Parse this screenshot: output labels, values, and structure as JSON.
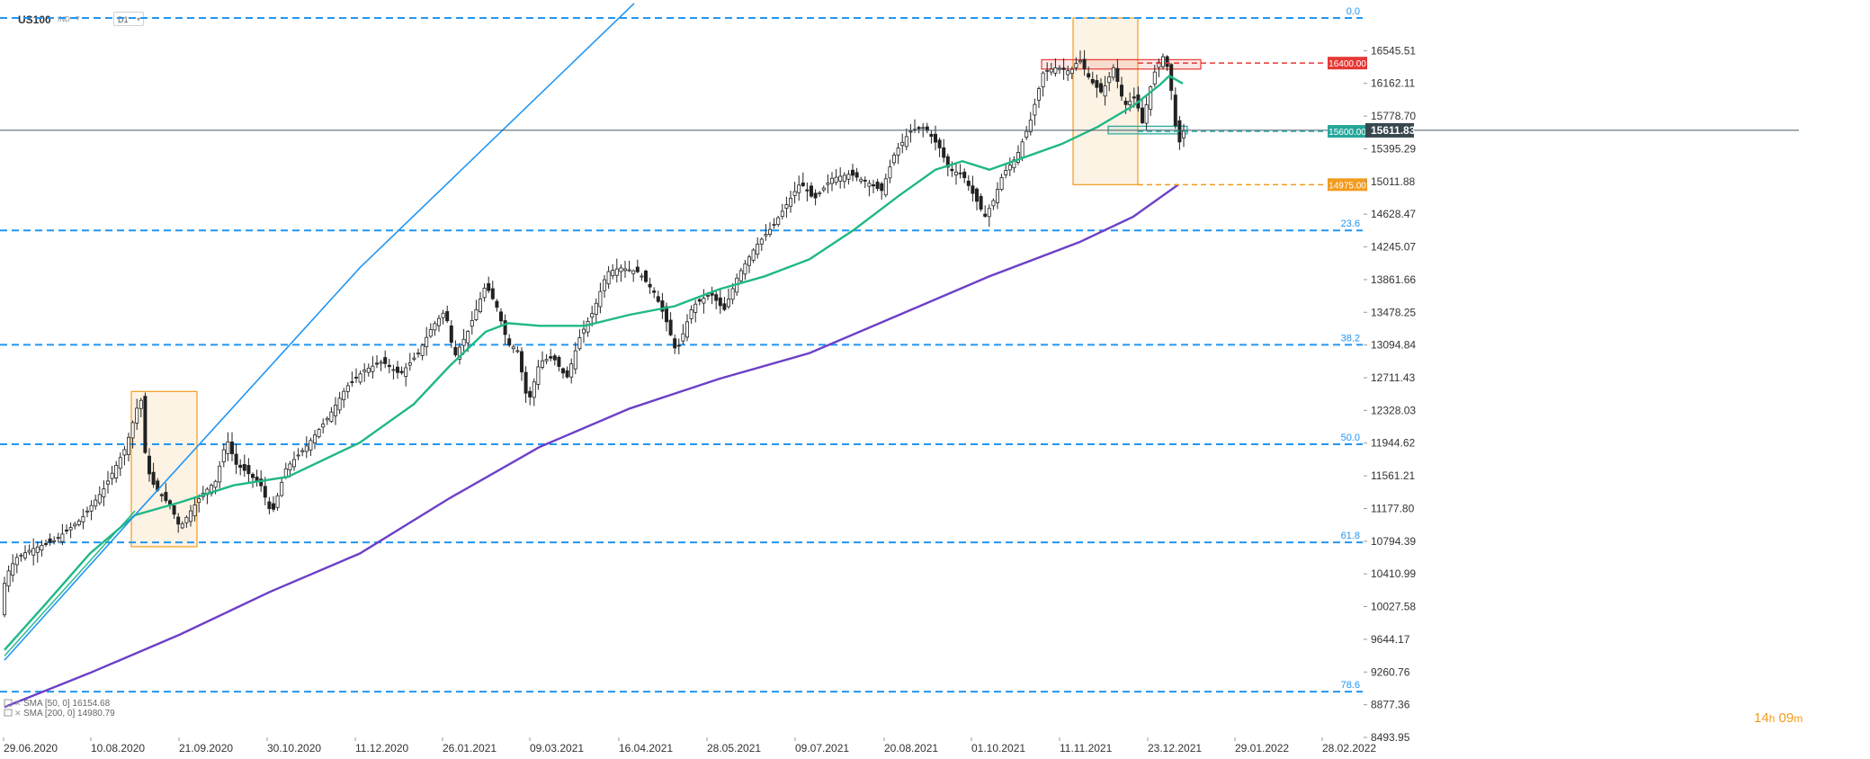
{
  "toolbar": {
    "symbol": "US100",
    "symbol_type": "IND",
    "timeframe": "D1"
  },
  "countdown": {
    "hours": "14",
    "h": "h",
    "minutes": "09",
    "m": "m"
  },
  "chart_data": {
    "type": "candlestick",
    "x_axis": {
      "labels": [
        "29.06.2020",
        "10.08.2020",
        "21.09.2020",
        "30.10.2020",
        "11.12.2020",
        "26.01.2021",
        "09.03.2021",
        "16.04.2021",
        "28.05.2021",
        "09.07.2021",
        "20.08.2021",
        "01.10.2021",
        "11.11.2021",
        "23.12.2021",
        "29.01.2022",
        "28.02.2022"
      ]
    },
    "y_axis": {
      "range": [
        8493.95,
        16928.93
      ],
      "ticks": [
        16545.51,
        16162.11,
        15778.7,
        15395.29,
        15011.88,
        14628.47,
        14245.07,
        13861.66,
        13478.25,
        13094.84,
        12711.43,
        12328.03,
        11944.62,
        11561.21,
        11177.8,
        10794.39,
        10410.99,
        10027.58,
        9644.17,
        9260.76,
        8877.36,
        8493.95
      ]
    },
    "current_price": "15611.83",
    "levels": [
      {
        "label": "16400.00",
        "value": 16400.0,
        "color": "#e53935",
        "style": "dashed"
      },
      {
        "label": "15600.00",
        "value": 15600.0,
        "color": "#26a69a",
        "style": "dashed"
      },
      {
        "label": "14975.00",
        "value": 14975.0,
        "color": "#f29b1e",
        "style": "dashed"
      }
    ],
    "fibonacci": [
      {
        "label": "0.0",
        "value": 16928.93
      },
      {
        "label": "23.6",
        "value": 14438.3
      },
      {
        "label": "38.2",
        "value": 13097.4
      },
      {
        "label": "50.0",
        "value": 11930.7
      },
      {
        "label": "61.8",
        "value": 10781.0
      },
      {
        "label": "78.6",
        "value": 9030.0
      }
    ],
    "indicators": [
      {
        "name": "SMA",
        "params": "[50, 0]",
        "value": "16154.68",
        "color": "#1fb886"
      },
      {
        "name": "SMA",
        "params": "[200, 0]",
        "value": "14980.79",
        "color": "#6c3fc8"
      }
    ],
    "series": [
      {
        "name": "price",
        "type": "candlestick",
        "anchors": [
          [
            0,
            9900
          ],
          [
            6,
            10380
          ],
          [
            18,
            10600
          ],
          [
            35,
            10700
          ],
          [
            60,
            10800
          ],
          [
            90,
            11050
          ],
          [
            115,
            11400
          ],
          [
            140,
            11900
          ],
          [
            152,
            12350
          ],
          [
            157,
            12450
          ],
          [
            162,
            11750
          ],
          [
            168,
            11500
          ],
          [
            178,
            11350
          ],
          [
            190,
            11200
          ],
          [
            200,
            10950
          ],
          [
            212,
            11150
          ],
          [
            225,
            11350
          ],
          [
            240,
            11500
          ],
          [
            252,
            12000
          ],
          [
            262,
            11700
          ],
          [
            275,
            11600
          ],
          [
            290,
            11450
          ],
          [
            302,
            11100
          ],
          [
            318,
            11650
          ],
          [
            340,
            11900
          ],
          [
            365,
            12250
          ],
          [
            385,
            12600
          ],
          [
            405,
            12800
          ],
          [
            425,
            12900
          ],
          [
            445,
            12750
          ],
          [
            465,
            13000
          ],
          [
            480,
            13300
          ],
          [
            495,
            13500
          ],
          [
            505,
            12950
          ],
          [
            520,
            13250
          ],
          [
            540,
            13800
          ],
          [
            552,
            13550
          ],
          [
            565,
            13100
          ],
          [
            575,
            13050
          ],
          [
            587,
            12400
          ],
          [
            600,
            12900
          ],
          [
            615,
            12950
          ],
          [
            630,
            12700
          ],
          [
            645,
            13200
          ],
          [
            660,
            13500
          ],
          [
            675,
            13950
          ],
          [
            690,
            14000
          ],
          [
            710,
            13950
          ],
          [
            728,
            13700
          ],
          [
            740,
            13400
          ],
          [
            752,
            13000
          ],
          [
            770,
            13550
          ],
          [
            790,
            13700
          ],
          [
            805,
            13500
          ],
          [
            820,
            13900
          ],
          [
            840,
            14250
          ],
          [
            860,
            14500
          ],
          [
            875,
            14750
          ],
          [
            890,
            15000
          ],
          [
            905,
            14800
          ],
          [
            925,
            15050
          ],
          [
            945,
            15100
          ],
          [
            965,
            15000
          ],
          [
            980,
            14900
          ],
          [
            995,
            15350
          ],
          [
            1012,
            15600
          ],
          [
            1028,
            15650
          ],
          [
            1045,
            15400
          ],
          [
            1055,
            15150
          ],
          [
            1070,
            15100
          ],
          [
            1085,
            14800
          ],
          [
            1095,
            14600
          ],
          [
            1105,
            14800
          ],
          [
            1115,
            15100
          ],
          [
            1130,
            15300
          ],
          [
            1145,
            15700
          ],
          [
            1160,
            16300
          ],
          [
            1175,
            16350
          ],
          [
            1190,
            16300
          ],
          [
            1200,
            16450
          ],
          [
            1212,
            16200
          ],
          [
            1225,
            16050
          ],
          [
            1238,
            16350
          ],
          [
            1250,
            15900
          ],
          [
            1262,
            16000
          ],
          [
            1270,
            15700
          ],
          [
            1282,
            16250
          ],
          [
            1292,
            16500
          ],
          [
            1300,
            16300
          ],
          [
            1306,
            15700
          ],
          [
            1312,
            15450
          ],
          [
            1316,
            15611.83
          ]
        ]
      },
      {
        "name": "SMA 50",
        "type": "line",
        "color": "#1fb886",
        "anchors": [
          [
            5,
            9520
          ],
          [
            50,
            10050
          ],
          [
            100,
            10650
          ],
          [
            150,
            11100
          ],
          [
            200,
            11250
          ],
          [
            260,
            11450
          ],
          [
            320,
            11550
          ],
          [
            400,
            11950
          ],
          [
            460,
            12400
          ],
          [
            500,
            12850
          ],
          [
            540,
            13250
          ],
          [
            565,
            13350
          ],
          [
            600,
            13320
          ],
          [
            650,
            13320
          ],
          [
            700,
            13450
          ],
          [
            750,
            13550
          ],
          [
            800,
            13750
          ],
          [
            850,
            13900
          ],
          [
            900,
            14100
          ],
          [
            950,
            14450
          ],
          [
            1000,
            14850
          ],
          [
            1040,
            15150
          ],
          [
            1070,
            15250
          ],
          [
            1100,
            15150
          ],
          [
            1140,
            15300
          ],
          [
            1180,
            15450
          ],
          [
            1220,
            15650
          ],
          [
            1260,
            15900
          ],
          [
            1290,
            16150
          ],
          [
            1300,
            16250
          ],
          [
            1315,
            16160
          ]
        ]
      },
      {
        "name": "SMA 200",
        "type": "line",
        "color": "#6c3fc8",
        "anchors": [
          [
            5,
            8850
          ],
          [
            100,
            9250
          ],
          [
            200,
            9700
          ],
          [
            300,
            10200
          ],
          [
            400,
            10650
          ],
          [
            500,
            11300
          ],
          [
            600,
            11900
          ],
          [
            700,
            12350
          ],
          [
            800,
            12700
          ],
          [
            900,
            13000
          ],
          [
            1000,
            13450
          ],
          [
            1100,
            13900
          ],
          [
            1200,
            14300
          ],
          [
            1260,
            14600
          ],
          [
            1310,
            14975
          ]
        ]
      },
      {
        "name": "trendline",
        "type": "line",
        "color": "#2196f3",
        "anchors": [
          [
            5,
            9400
          ],
          [
            150,
            11100
          ],
          [
            400,
            14000
          ],
          [
            705,
            17100
          ]
        ]
      }
    ],
    "zones": [
      {
        "color": "#f29b1e",
        "x": [
          146,
          219
        ],
        "y": [
          10730,
          12550
        ]
      },
      {
        "color": "#f29b1e",
        "x": [
          1193,
          1265
        ],
        "y": [
          14975,
          16928.93
        ]
      },
      {
        "color": "#e53935",
        "x": [
          1158,
          1335
        ],
        "y": [
          16330,
          16440
        ]
      },
      {
        "color": "#26a69a",
        "x": [
          1232,
          1320
        ],
        "y": [
          15570,
          15660
        ]
      }
    ]
  }
}
